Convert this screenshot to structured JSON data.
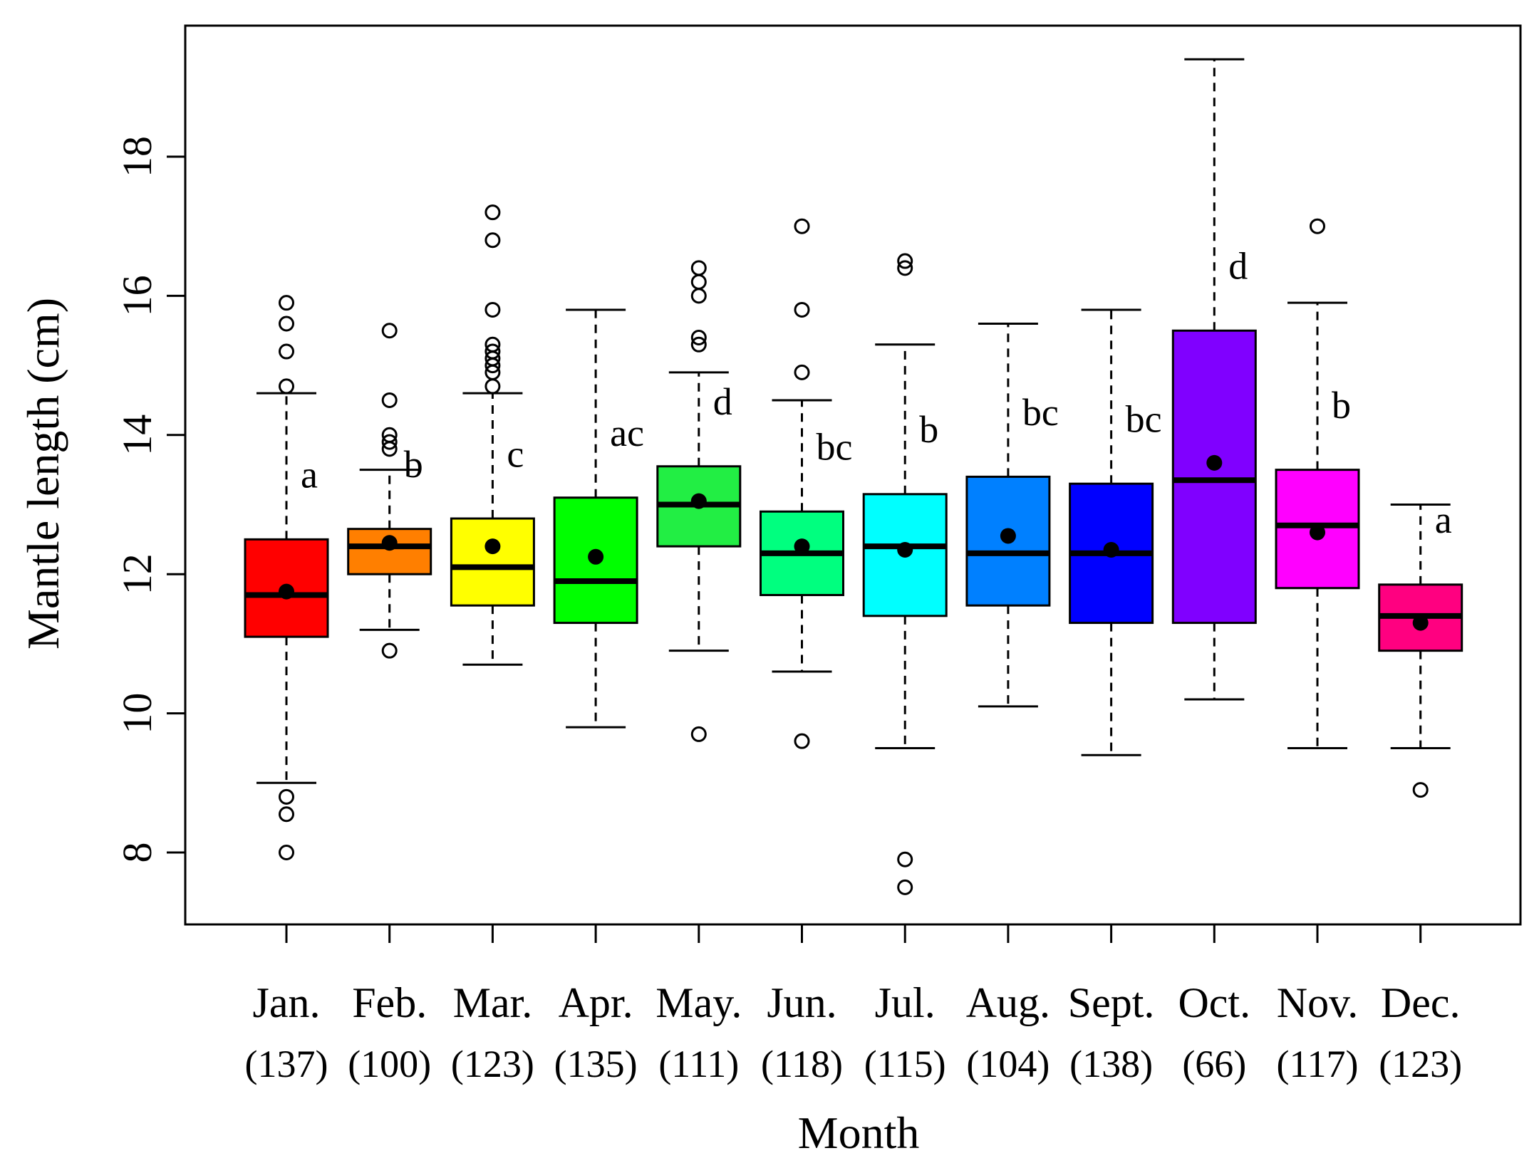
{
  "chart_data": {
    "type": "boxplot",
    "xlabel": "Month",
    "ylabel": "Mantle length (cm)",
    "ylim": [
      7.0,
      20.0
    ],
    "yticks": [
      8,
      10,
      12,
      14,
      16,
      18
    ],
    "yticklabels": [
      "8",
      "10",
      "12",
      "14",
      "16",
      "18"
    ],
    "grid": false,
    "legend": "none",
    "boxes": [
      {
        "month": "Jan.",
        "n": "(137)",
        "color": "#ff0000",
        "whisker_low": 9.0,
        "q1": 11.1,
        "median": 11.7,
        "q3": 12.5,
        "whisker_high": 14.6,
        "mean": 11.75,
        "outliers": [
          15.9,
          15.6,
          15.2,
          14.7,
          8.8,
          8.55,
          8.0
        ],
        "letter": "a"
      },
      {
        "month": "Feb.",
        "n": "(100)",
        "color": "#ff7f00",
        "whisker_low": 11.2,
        "q1": 12.0,
        "median": 12.4,
        "q3": 12.65,
        "whisker_high": 13.5,
        "mean": 12.45,
        "outliers": [
          15.5,
          14.5,
          14.0,
          13.9,
          13.8,
          10.9
        ],
        "letter": "b"
      },
      {
        "month": "Mar.",
        "n": "(123)",
        "color": "#ffff00",
        "whisker_low": 10.7,
        "q1": 11.55,
        "median": 12.1,
        "q3": 12.8,
        "whisker_high": 14.6,
        "mean": 12.4,
        "outliers": [
          17.2,
          16.8,
          15.8,
          15.3,
          15.2,
          15.1,
          15.0,
          14.9,
          14.7
        ],
        "letter": "c"
      },
      {
        "month": "Apr.",
        "n": "(135)",
        "color": "#00ff00",
        "whisker_low": 9.8,
        "q1": 11.3,
        "median": 11.9,
        "q3": 13.1,
        "whisker_high": 15.8,
        "mean": 12.25,
        "outliers": [],
        "letter": "ac"
      },
      {
        "month": "May.",
        "n": "(111)",
        "color": "#22ee44",
        "whisker_low": 10.9,
        "q1": 12.4,
        "median": 13.0,
        "q3": 13.55,
        "whisker_high": 14.9,
        "mean": 13.05,
        "outliers": [
          16.4,
          16.2,
          16.0,
          15.4,
          15.3,
          9.7
        ],
        "letter": "d"
      },
      {
        "month": "Jun.",
        "n": "(118)",
        "color": "#00ff7f",
        "whisker_low": 10.6,
        "q1": 11.7,
        "median": 12.3,
        "q3": 12.9,
        "whisker_high": 14.5,
        "mean": 12.4,
        "outliers": [
          17.0,
          15.8,
          14.9,
          9.6
        ],
        "letter": "bc"
      },
      {
        "month": "Jul.",
        "n": "(115)",
        "color": "#00ffff",
        "whisker_low": 9.5,
        "q1": 11.4,
        "median": 12.4,
        "q3": 13.15,
        "whisker_high": 15.3,
        "mean": 12.35,
        "outliers": [
          16.5,
          16.4,
          7.9,
          7.5
        ],
        "letter": "b"
      },
      {
        "month": "Aug.",
        "n": "(104)",
        "color": "#0080ff",
        "whisker_low": 10.1,
        "q1": 11.55,
        "median": 12.3,
        "q3": 13.4,
        "whisker_high": 15.6,
        "mean": 12.55,
        "outliers": [],
        "letter": "bc"
      },
      {
        "month": "Sept.",
        "n": "(138)",
        "color": "#0000ff",
        "whisker_low": 9.4,
        "q1": 11.3,
        "median": 12.3,
        "q3": 13.3,
        "whisker_high": 15.8,
        "mean": 12.35,
        "outliers": [],
        "letter": "bc"
      },
      {
        "month": "Oct.",
        "n": "(66)",
        "color": "#8000ff",
        "whisker_low": 10.2,
        "q1": 11.3,
        "median": 13.35,
        "q3": 15.5,
        "whisker_high": 19.4,
        "mean": 13.6,
        "outliers": [],
        "letter": "d"
      },
      {
        "month": "Nov.",
        "n": "(117)",
        "color": "#ff00ff",
        "whisker_low": 9.5,
        "q1": 11.8,
        "median": 12.7,
        "q3": 13.5,
        "whisker_high": 15.9,
        "mean": 12.6,
        "outliers": [
          17.0
        ],
        "letter": "b"
      },
      {
        "month": "Dec.",
        "n": "(123)",
        "color": "#ff0080",
        "whisker_low": 9.5,
        "q1": 10.9,
        "median": 11.4,
        "q3": 11.85,
        "whisker_high": 13.0,
        "mean": 11.3,
        "outliers": [
          8.9
        ],
        "letter": "a"
      }
    ]
  }
}
